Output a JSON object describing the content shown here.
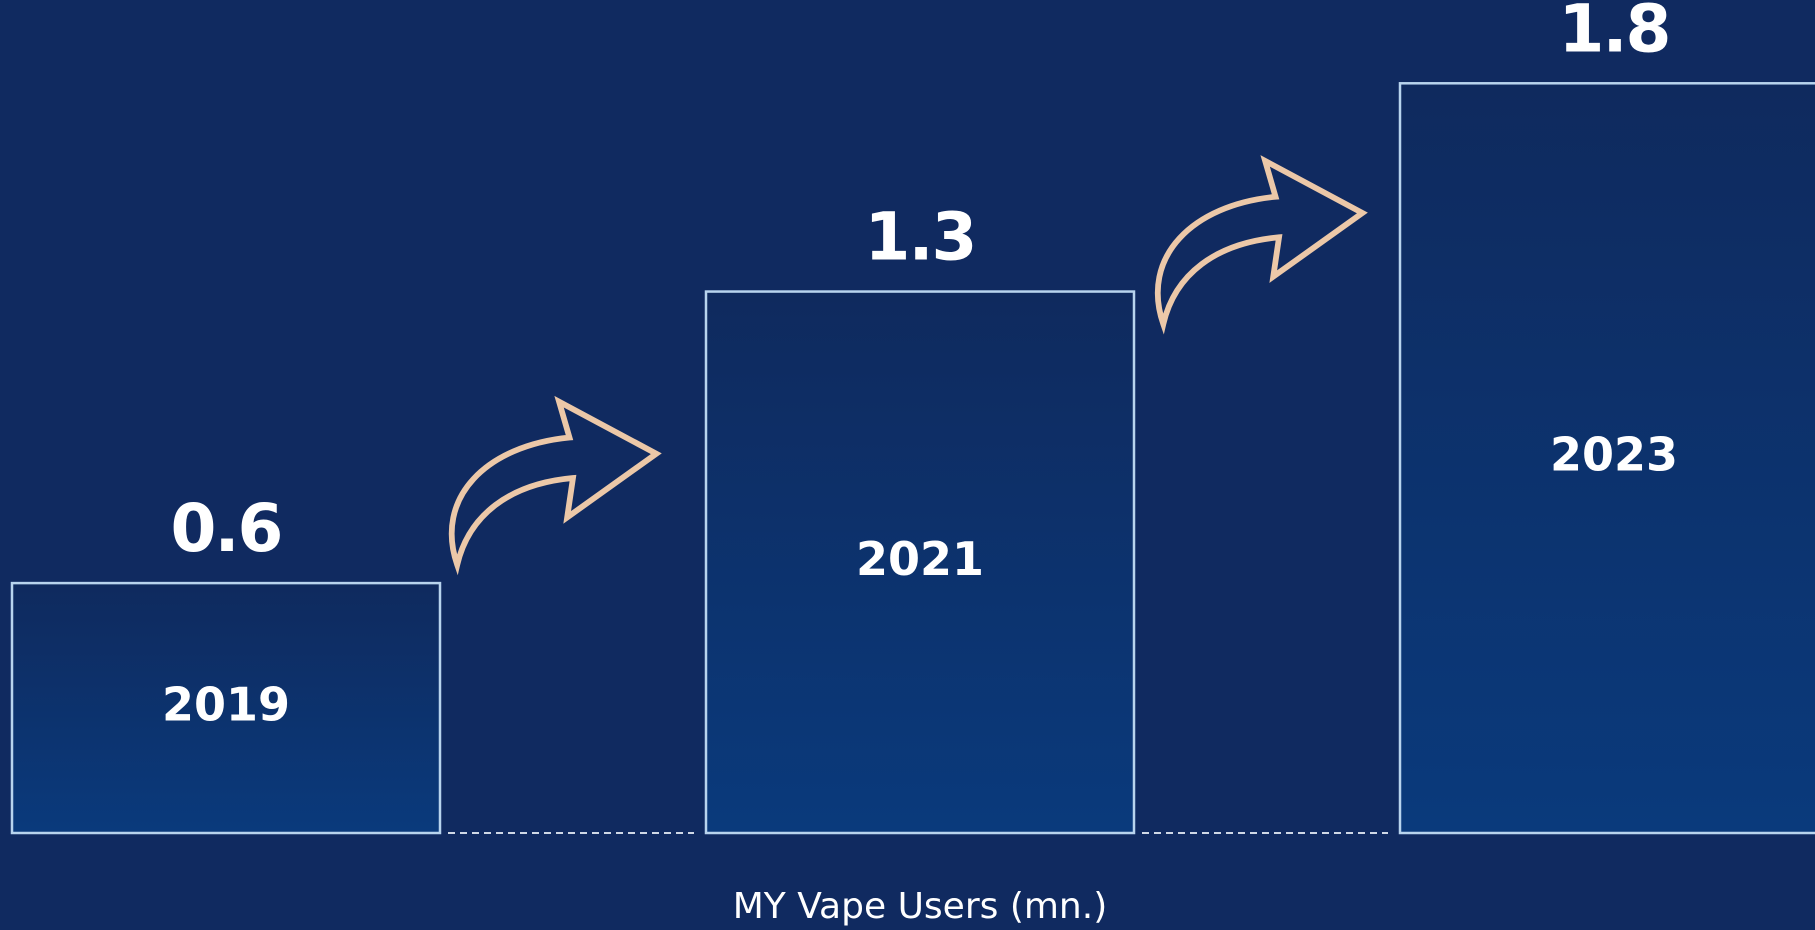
{
  "chart_data": {
    "type": "bar",
    "xlabel": "MY Vape Users (mn.)",
    "categories": [
      "2019",
      "2021",
      "2023"
    ],
    "values": [
      0.6,
      1.3,
      1.8
    ],
    "ylim": [
      0,
      2
    ],
    "grid": false
  }
}
